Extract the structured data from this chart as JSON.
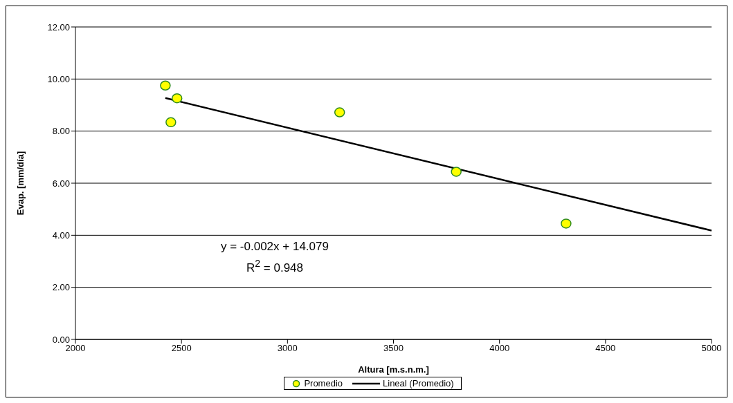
{
  "chart_data": {
    "type": "scatter",
    "xlabel": "Altura [m.s.n.m.]",
    "ylabel": "Evap. [mm/día]",
    "xlim": [
      2000,
      5000
    ],
    "xticks": [
      2000,
      2500,
      3000,
      3500,
      4000,
      4500,
      5000
    ],
    "ylim": [
      0,
      12
    ],
    "yticks": [
      {
        "value": 0,
        "label": "0.00"
      },
      {
        "value": 2,
        "label": "2.00"
      },
      {
        "value": 4,
        "label": "4.00"
      },
      {
        "value": 6,
        "label": "6.00"
      },
      {
        "value": 8,
        "label": "8.00"
      },
      {
        "value": 10,
        "label": "10.00"
      },
      {
        "value": 12,
        "label": "12.00"
      }
    ],
    "grid": "y",
    "legend": "bottom",
    "x": [
      2424,
      2450,
      2479,
      3246,
      3796,
      4314
    ],
    "series": [
      {
        "name": "Promedio",
        "marker": "circle",
        "color": "#ffff00",
        "values": [
          9.75,
          8.34,
          9.26,
          8.72,
          6.44,
          4.45
        ]
      },
      {
        "name": "Lineal (Promedio)",
        "type": "line",
        "color": "#000000",
        "line_style": "solid",
        "x": [
          2424,
          5000
        ],
        "values": [
          9.27,
          4.18
        ]
      }
    ],
    "annotations": [
      "y = -0.002x + 14.079",
      "R$^{2}$ = 0.948"
    ]
  }
}
